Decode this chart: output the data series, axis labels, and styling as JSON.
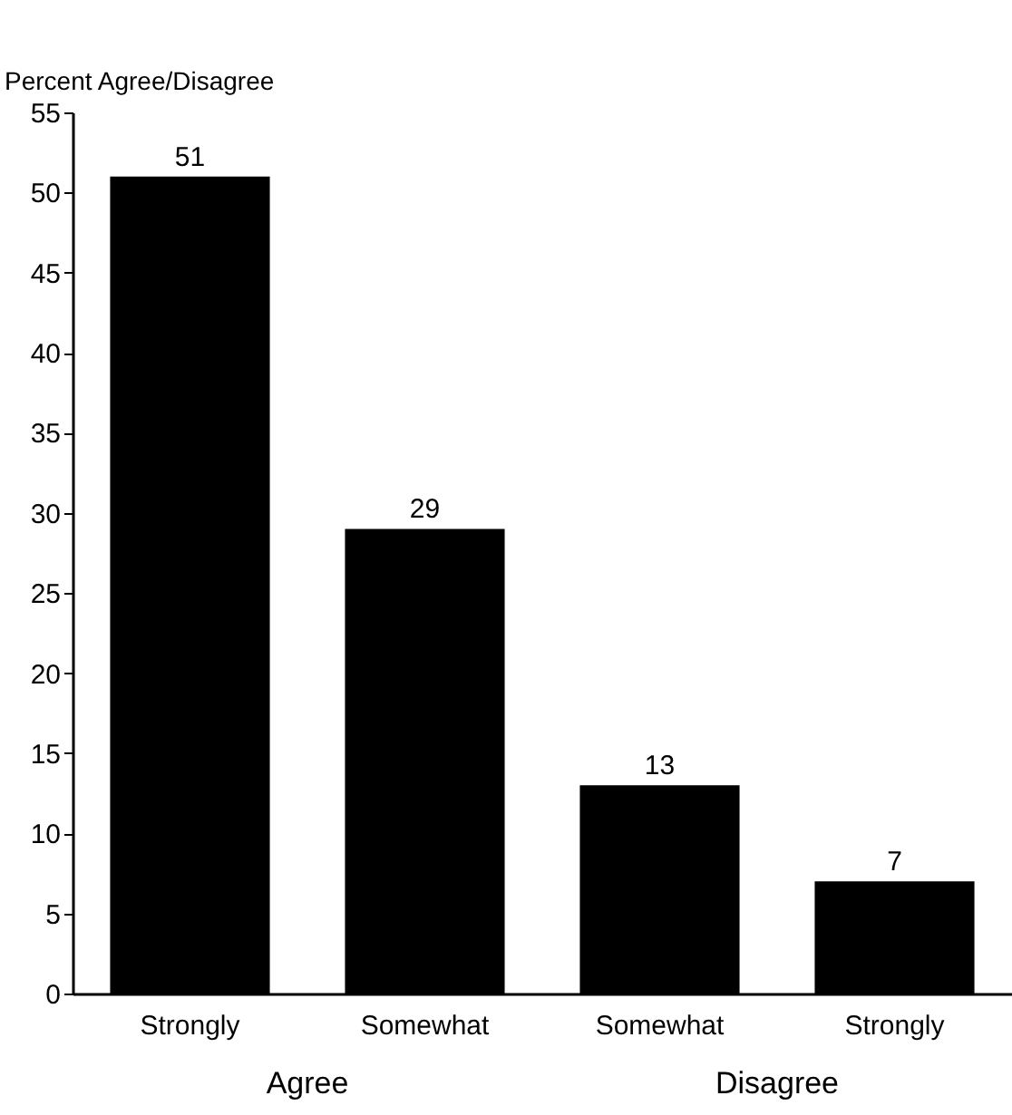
{
  "chart_data": {
    "type": "bar",
    "ylabel": "Percent Agree/Disagree",
    "categories": [
      "Strongly",
      "Somewhat",
      "Somewhat",
      "Strongly"
    ],
    "values": [
      51,
      29,
      13,
      7
    ],
    "color": "#000000",
    "ylim": [
      0,
      55
    ],
    "yticks": [
      0,
      5,
      10,
      15,
      20,
      25,
      30,
      35,
      40,
      45,
      50,
      55
    ],
    "grid": false,
    "data_labels": true,
    "annotations": [
      "Agree",
      "Disagree"
    ]
  }
}
